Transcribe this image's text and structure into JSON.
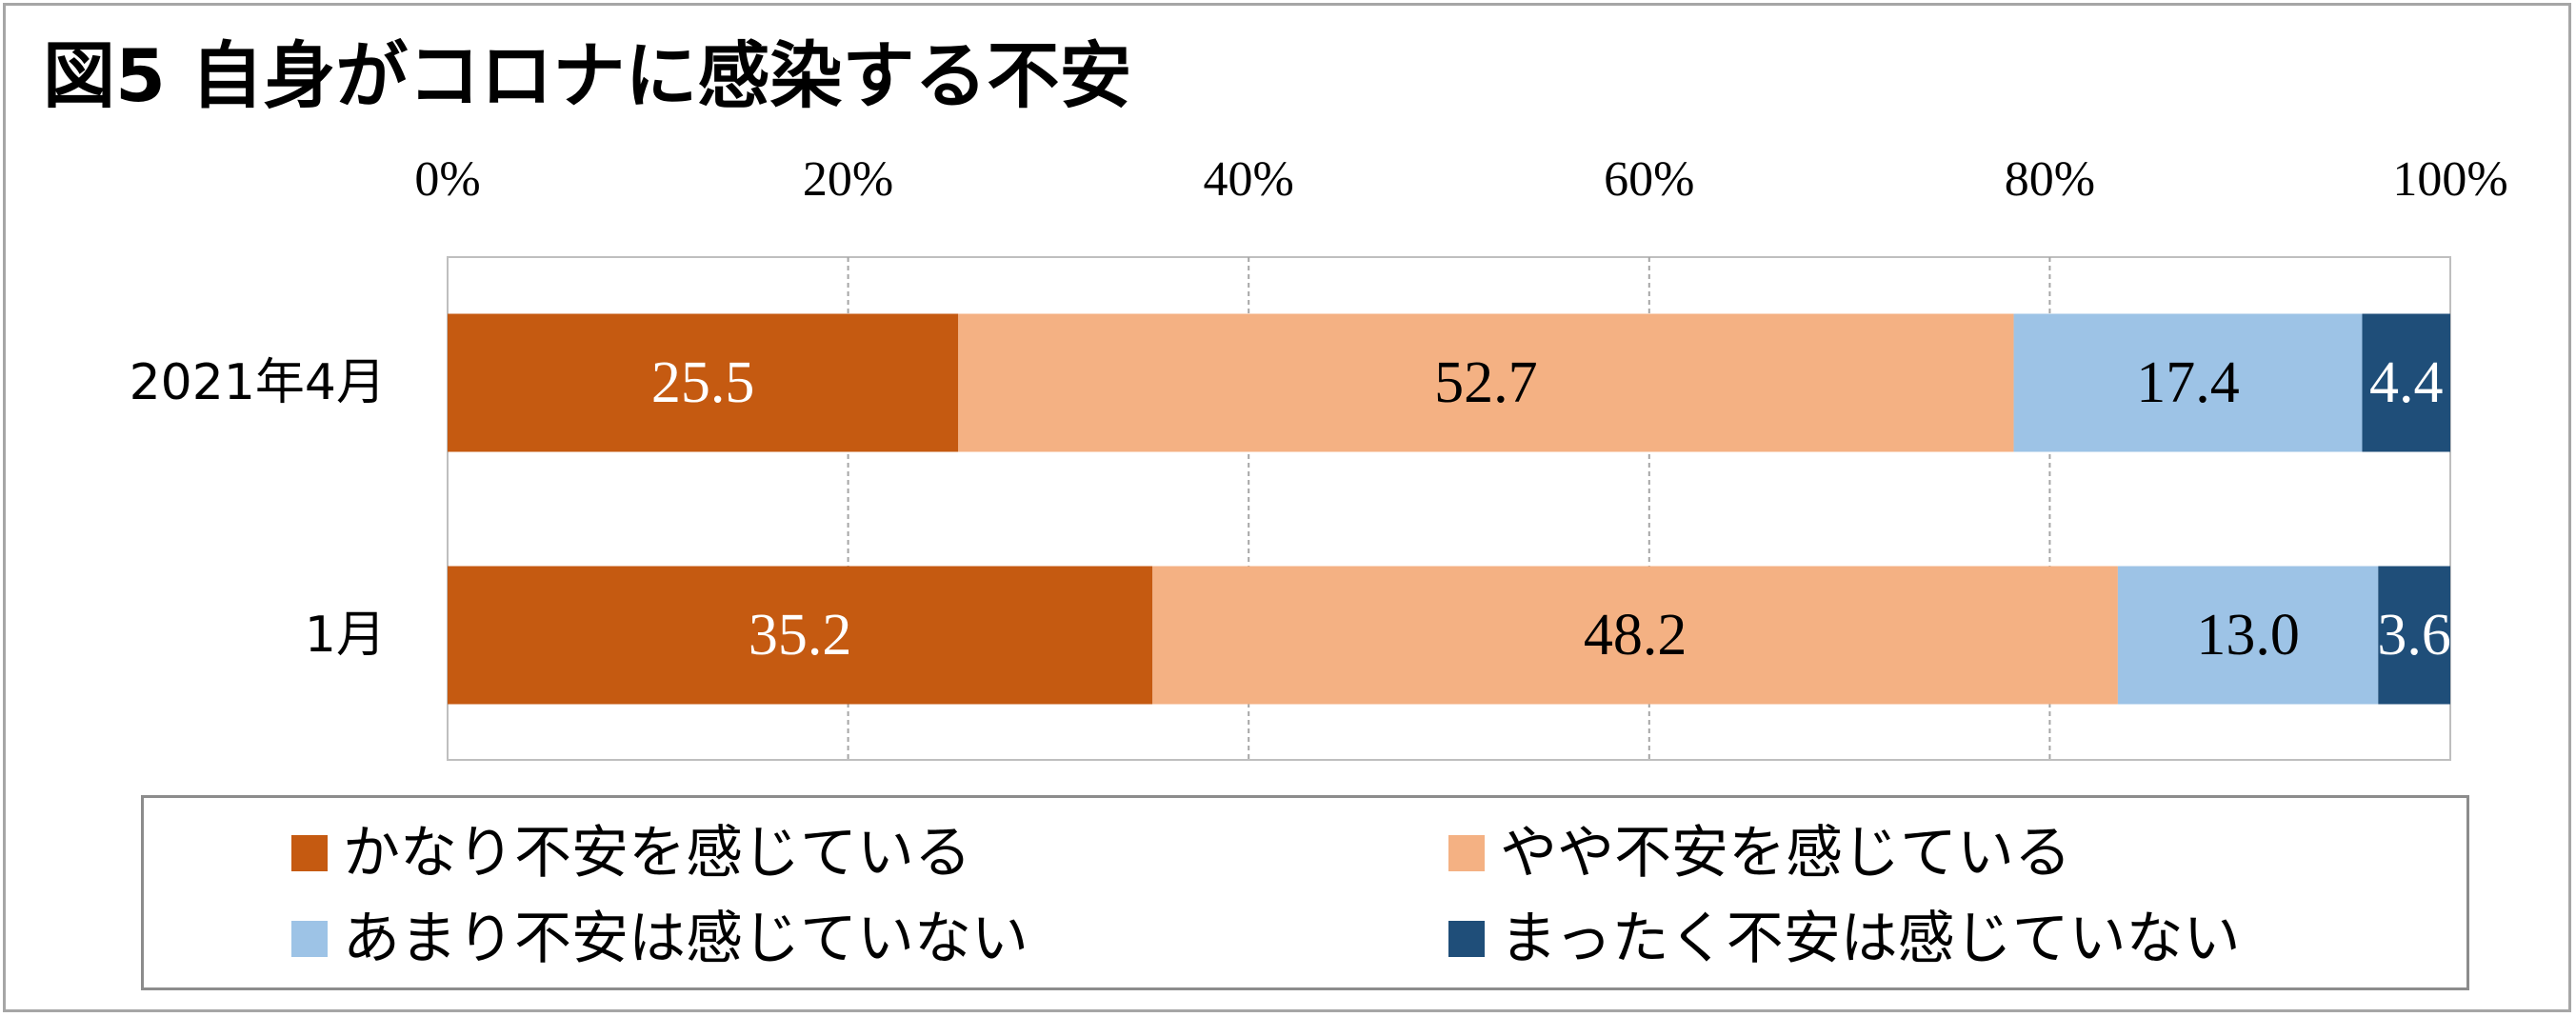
{
  "chart_data": {
    "type": "bar",
    "orientation": "horizontal",
    "stacked": true,
    "normalized": true,
    "title": "図5 自身がコロナに感染する不安",
    "categories": [
      "2021年4月",
      "1月"
    ],
    "x_ticks": [
      "0%",
      "20%",
      "40%",
      "60%",
      "80%",
      "100%"
    ],
    "xlim": [
      0,
      100
    ],
    "grid": true,
    "legend_position": "bottom",
    "series": [
      {
        "name": "かなり不安を感じている",
        "values": [
          25.5,
          35.2
        ],
        "labels": [
          "25.5",
          "35.2"
        ],
        "color": "#c55a11",
        "label_color": "#ffffff"
      },
      {
        "name": "やや不安を感じている",
        "values": [
          52.7,
          48.2
        ],
        "labels": [
          "52.7",
          "48.2"
        ],
        "color": "#f4b183",
        "label_color": "#000000"
      },
      {
        "name": "あまり不安は感じていない",
        "values": [
          17.4,
          13.0
        ],
        "labels": [
          "17.4",
          "13.0"
        ],
        "color": "#9dc3e6",
        "label_color": "#000000"
      },
      {
        "name": "まったく不安は感じていない",
        "values": [
          4.4,
          3.6
        ],
        "labels": [
          "4.4",
          "3.6"
        ],
        "color": "#1f4e79",
        "label_color": "#ffffff"
      }
    ]
  }
}
